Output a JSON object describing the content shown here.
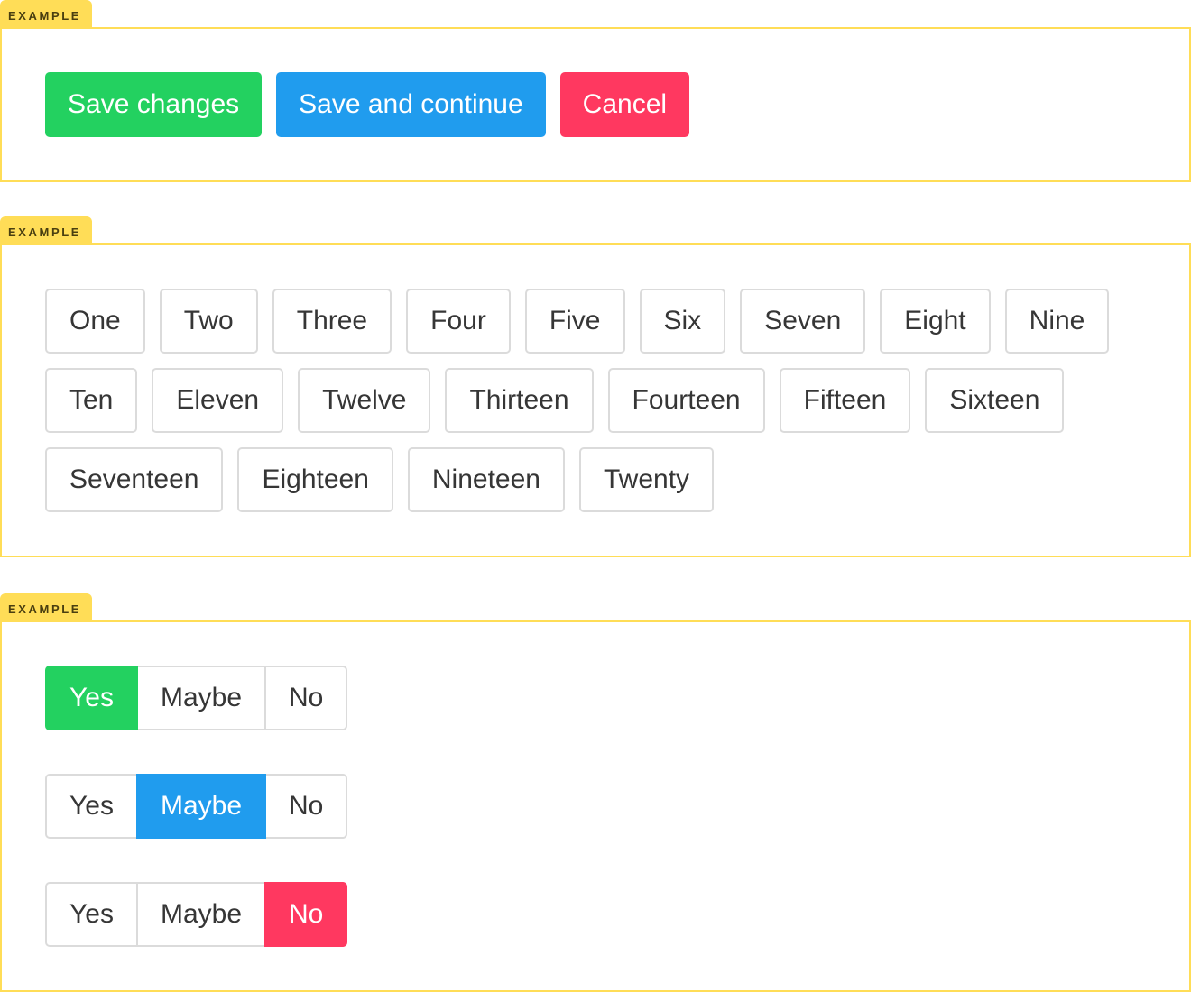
{
  "examples_label": "EXAMPLE",
  "colors": {
    "success": "#23d160",
    "info": "#209cee",
    "danger": "#ff3860",
    "tab": "#ffdd57"
  },
  "example1": {
    "buttons": [
      {
        "label": "Save changes",
        "color": "#23d160"
      },
      {
        "label": "Save and continue",
        "color": "#209cee"
      },
      {
        "label": "Cancel",
        "color": "#ff3860"
      }
    ]
  },
  "example2": {
    "tags": [
      "One",
      "Two",
      "Three",
      "Four",
      "Five",
      "Six",
      "Seven",
      "Eight",
      "Nine",
      "Ten",
      "Eleven",
      "Twelve",
      "Thirteen",
      "Fourteen",
      "Fifteen",
      "Sixteen",
      "Seventeen",
      "Eighteen",
      "Nineteen",
      "Twenty"
    ]
  },
  "example3": {
    "groups": [
      {
        "options": [
          "Yes",
          "Maybe",
          "No"
        ],
        "selected": 0,
        "color": "#23d160"
      },
      {
        "options": [
          "Yes",
          "Maybe",
          "No"
        ],
        "selected": 1,
        "color": "#209cee"
      },
      {
        "options": [
          "Yes",
          "Maybe",
          "No"
        ],
        "selected": 2,
        "color": "#ff3860"
      }
    ]
  }
}
